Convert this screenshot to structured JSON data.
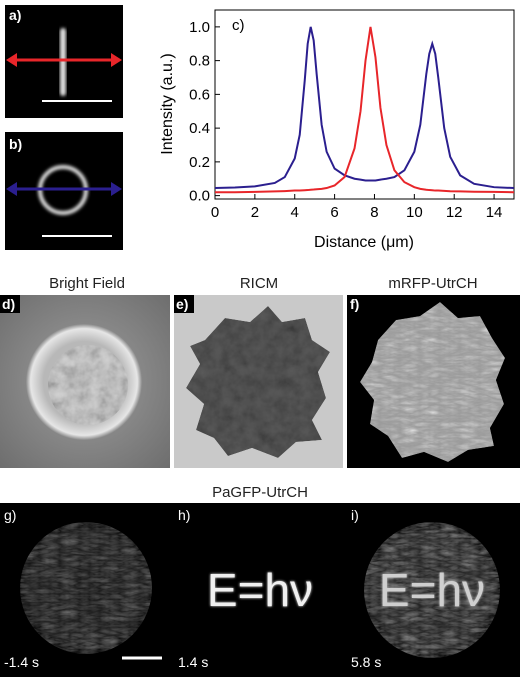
{
  "chart_data": {
    "type": "line",
    "label": "c)",
    "xlabel": "Distance (μm)",
    "ylabel": "Intensity (a.u.)",
    "x": [
      0,
      1,
      2,
      3,
      3.5,
      4,
      4.25,
      4.5,
      4.65,
      4.8,
      4.95,
      5.1,
      5.35,
      5.6,
      6,
      6.5,
      7,
      7.3,
      7.55,
      7.8,
      8.05,
      8.3,
      8.6,
      9,
      9.5,
      10,
      10.3,
      10.6,
      10.75,
      10.9,
      11.05,
      11.2,
      11.5,
      11.8,
      12.3,
      13,
      14,
      15
    ],
    "series": [
      {
        "color": "#2b1f8f",
        "values": [
          0.045,
          0.048,
          0.055,
          0.075,
          0.11,
          0.22,
          0.36,
          0.68,
          0.9,
          1.0,
          0.92,
          0.72,
          0.42,
          0.26,
          0.16,
          0.12,
          0.1,
          0.095,
          0.09,
          0.09,
          0.09,
          0.095,
          0.1,
          0.11,
          0.15,
          0.26,
          0.42,
          0.72,
          0.84,
          0.9,
          0.84,
          0.7,
          0.4,
          0.23,
          0.12,
          0.07,
          0.05,
          0.045
        ]
      },
      {
        "color": "#e8262a",
        "values": [
          0.02,
          0.02,
          0.022,
          0.025,
          0.027,
          0.03,
          0.03,
          0.032,
          0.033,
          0.035,
          0.036,
          0.038,
          0.04,
          0.045,
          0.06,
          0.11,
          0.28,
          0.5,
          0.8,
          1.0,
          0.82,
          0.52,
          0.3,
          0.15,
          0.08,
          0.05,
          0.04,
          0.035,
          0.033,
          0.032,
          0.03,
          0.03,
          0.028,
          0.026,
          0.025,
          0.023,
          0.022,
          0.02
        ]
      }
    ],
    "xlim": [
      0,
      15
    ],
    "ylim": [
      -0.02,
      1.1
    ],
    "xticks": [
      0,
      2,
      4,
      6,
      8,
      10,
      12,
      14
    ],
    "yticks": [
      {
        "value": 0,
        "label": "0.0"
      },
      {
        "value": 0.2,
        "label": "0.2"
      },
      {
        "value": 0.4,
        "label": "0.4"
      },
      {
        "value": 0.6,
        "label": "0.6"
      },
      {
        "value": 0.8,
        "label": "0.8"
      },
      {
        "value": 1,
        "label": "1.0"
      }
    ]
  },
  "panels": {
    "a": {
      "label": "a)"
    },
    "b": {
      "label": "b)"
    },
    "d": {
      "label": "d)",
      "title": "Bright Field"
    },
    "e": {
      "label": "e)",
      "title": "RICM"
    },
    "f": {
      "label": "f)",
      "title": "mRFP-UtrCH"
    },
    "row_title": "PaGFP-UtrCH",
    "g": {
      "label": "g)",
      "time": "-1.4 s"
    },
    "h": {
      "label": "h)",
      "time": "1.4 s",
      "inscription": "E=hν"
    },
    "i": {
      "label": "i)",
      "time": "5.8 s",
      "inscription": "E=hν"
    }
  }
}
